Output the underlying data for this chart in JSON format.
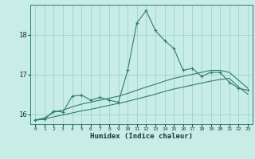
{
  "xlabel": "Humidex (Indice chaleur)",
  "x_ticks": [
    0,
    1,
    2,
    3,
    4,
    5,
    6,
    7,
    8,
    9,
    10,
    11,
    12,
    13,
    14,
    15,
    16,
    17,
    18,
    19,
    20,
    21,
    22,
    23
  ],
  "ylim": [
    15.75,
    18.75
  ],
  "yticks": [
    16,
    17,
    18
  ],
  "bg_color": "#c8ece6",
  "grid_color": "#9dd4cc",
  "line_color": "#2e7d6e",
  "line1_x": [
    0,
    1,
    2,
    3,
    4,
    5,
    6,
    7,
    8,
    9,
    10,
    11,
    12,
    13,
    14,
    15,
    16,
    17,
    18,
    19,
    20,
    21,
    22,
    23
  ],
  "line1_y": [
    15.85,
    15.87,
    16.08,
    16.05,
    16.45,
    16.48,
    16.35,
    16.42,
    16.35,
    16.3,
    17.1,
    18.3,
    18.6,
    18.1,
    17.85,
    17.65,
    17.1,
    17.15,
    16.95,
    17.05,
    17.05,
    16.8,
    16.65,
    16.6
  ],
  "line2_x": [
    0,
    1,
    2,
    3,
    4,
    5,
    6,
    7,
    8,
    9,
    10,
    11,
    12,
    13,
    14,
    15,
    16,
    17,
    18,
    19,
    20,
    21,
    22,
    23
  ],
  "line2_y": [
    15.85,
    15.9,
    16.05,
    16.1,
    16.18,
    16.25,
    16.3,
    16.35,
    16.4,
    16.45,
    16.52,
    16.6,
    16.68,
    16.75,
    16.83,
    16.9,
    16.95,
    17.0,
    17.05,
    17.1,
    17.1,
    17.05,
    16.85,
    16.65
  ],
  "line3_x": [
    0,
    1,
    2,
    3,
    4,
    5,
    6,
    7,
    8,
    9,
    10,
    11,
    12,
    13,
    14,
    15,
    16,
    17,
    18,
    19,
    20,
    21,
    22,
    23
  ],
  "line3_y": [
    15.85,
    15.88,
    15.93,
    15.98,
    16.03,
    16.08,
    16.12,
    16.17,
    16.22,
    16.27,
    16.32,
    16.38,
    16.44,
    16.5,
    16.57,
    16.63,
    16.68,
    16.73,
    16.78,
    16.83,
    16.87,
    16.9,
    16.68,
    16.5
  ]
}
